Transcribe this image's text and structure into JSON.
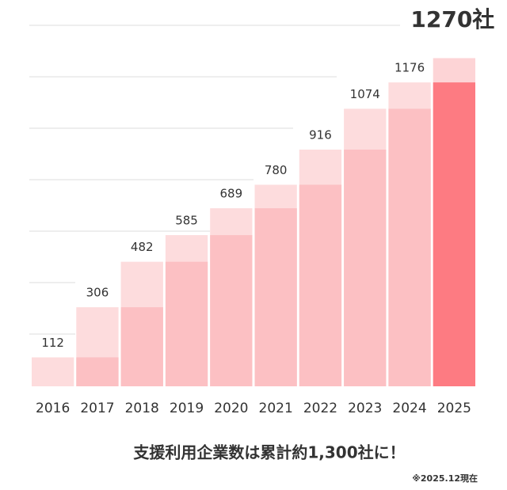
{
  "chart_data": {
    "type": "bar",
    "categories": [
      "2016",
      "2017",
      "2018",
      "2019",
      "2020",
      "2021",
      "2022",
      "2023",
      "2024",
      "2025"
    ],
    "values": [
      112,
      306,
      482,
      585,
      689,
      780,
      916,
      1074,
      1176,
      1270
    ],
    "value_labels": [
      "112",
      "306",
      "482",
      "585",
      "689",
      "780",
      "916",
      "1074",
      "1176",
      "1270社"
    ],
    "ylim": [
      0,
      1400
    ],
    "colors": {
      "increment": "#fddcdd",
      "base": "#fcc0c3",
      "highlight_increment": "#fdd4d6",
      "highlight_base": "#fd7b82"
    },
    "caption": "支援利用企業数は累計約1,300社に！",
    "note": "※2025.12現在"
  }
}
